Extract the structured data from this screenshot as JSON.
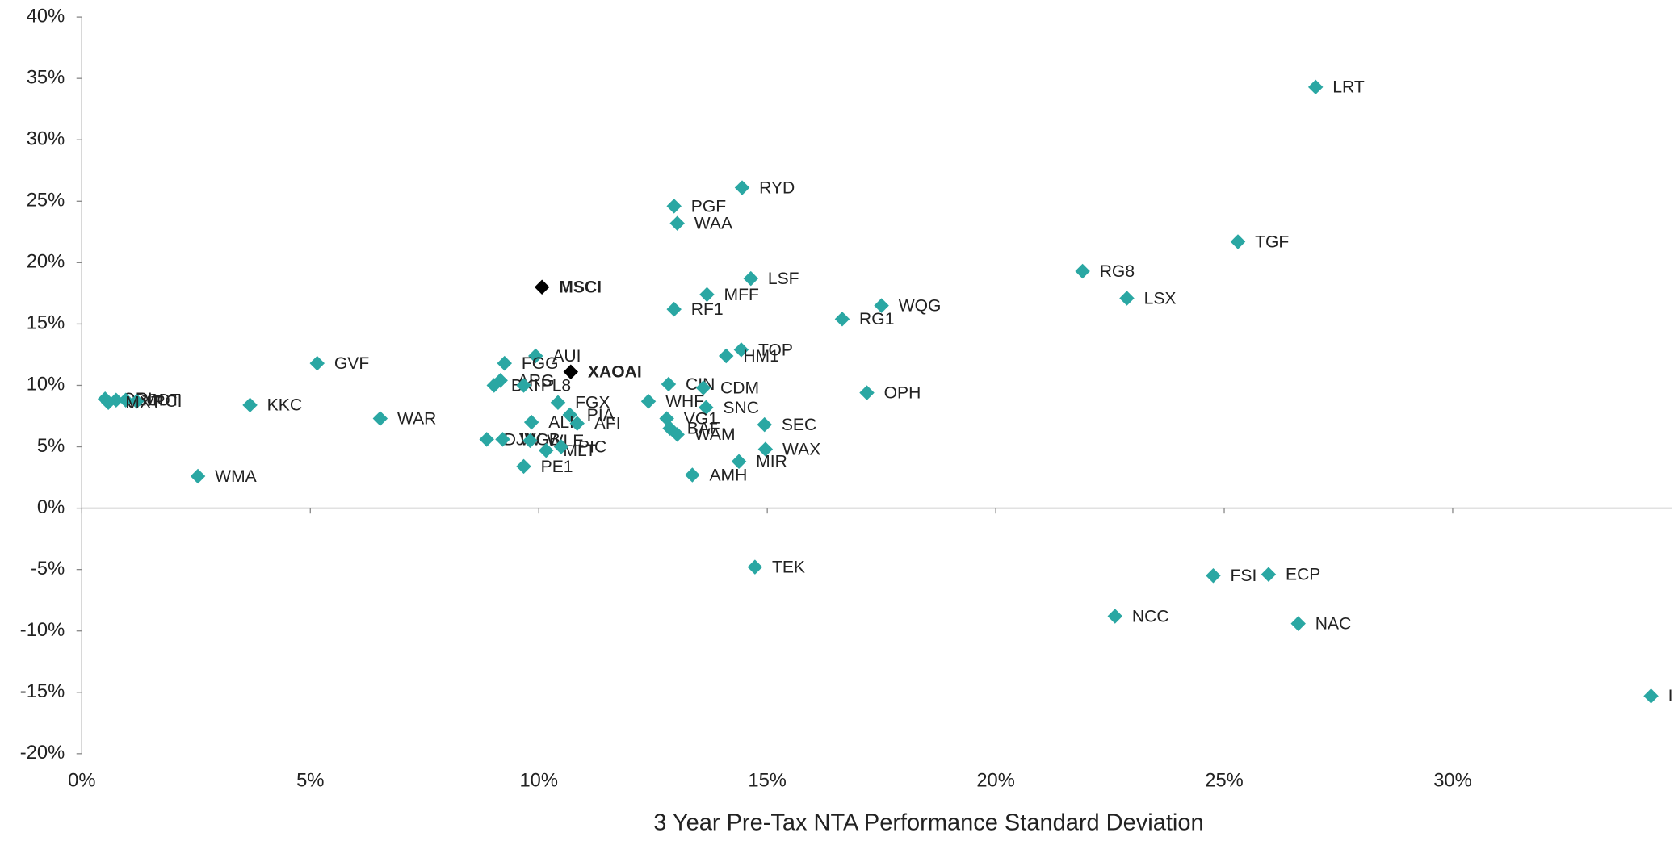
{
  "chart_data": {
    "type": "scatter",
    "xlabel": "3 Year Pre-Tax NTA Performance Standard Deviation",
    "xlim": [
      0,
      34.8
    ],
    "ylim": [
      -20,
      40
    ],
    "xticks": [
      {
        "value": 0,
        "label": "0%"
      },
      {
        "value": 5,
        "label": "5%"
      },
      {
        "value": 10,
        "label": "10%"
      },
      {
        "value": 15,
        "label": "15%"
      },
      {
        "value": 20,
        "label": "20%"
      },
      {
        "value": 25,
        "label": "25%"
      },
      {
        "value": 30,
        "label": "30%"
      }
    ],
    "yticks": [
      {
        "value": -20,
        "label": "-20%"
      },
      {
        "value": -15,
        "label": "-15%"
      },
      {
        "value": -10,
        "label": "-10%"
      },
      {
        "value": -5,
        "label": "-5%"
      },
      {
        "value": 0,
        "label": "0%"
      },
      {
        "value": 5,
        "label": "5%"
      },
      {
        "value": 10,
        "label": "10%"
      },
      {
        "value": 15,
        "label": "15%"
      },
      {
        "value": 20,
        "label": "20%"
      },
      {
        "value": 25,
        "label": "25%"
      },
      {
        "value": 30,
        "label": "30%"
      },
      {
        "value": 35,
        "label": "35%"
      },
      {
        "value": 40,
        "label": "40%"
      }
    ],
    "color": "#2aa7a3",
    "points": [
      {
        "label": "LRT",
        "x": 27.0,
        "y": 34.3,
        "color": "#2aa7a3"
      },
      {
        "label": "RYD",
        "x": 14.45,
        "y": 26.1,
        "color": "#2aa7a3"
      },
      {
        "label": "PGF",
        "x": 12.96,
        "y": 24.6,
        "color": "#2aa7a3"
      },
      {
        "label": "WAA",
        "x": 13.03,
        "y": 23.2,
        "color": "#2aa7a3"
      },
      {
        "label": "TGF",
        "x": 25.3,
        "y": 21.7,
        "color": "#2aa7a3"
      },
      {
        "label": "RG8",
        "x": 21.9,
        "y": 19.3,
        "color": "#2aa7a3"
      },
      {
        "label": "MSCI",
        "x": 10.07,
        "y": 18.0,
        "color": "#000000"
      },
      {
        "label": "LSF",
        "x": 14.64,
        "y": 18.7,
        "color": "#2aa7a3"
      },
      {
        "label": "LSX",
        "x": 22.87,
        "y": 17.1,
        "color": "#2aa7a3"
      },
      {
        "label": "MFF",
        "x": 13.68,
        "y": 17.4,
        "color": "#2aa7a3"
      },
      {
        "label": "WQG",
        "x": 17.5,
        "y": 16.5,
        "color": "#2aa7a3"
      },
      {
        "label": "RF1",
        "x": 12.96,
        "y": 16.2,
        "color": "#2aa7a3"
      },
      {
        "label": "RG1",
        "x": 16.64,
        "y": 15.4,
        "color": "#2aa7a3"
      },
      {
        "label": "GVF",
        "x": 5.15,
        "y": 11.8,
        "color": "#2aa7a3"
      },
      {
        "label": "AUI",
        "x": 9.93,
        "y": 12.4,
        "color": "#2aa7a3"
      },
      {
        "label": "FGG",
        "x": 9.25,
        "y": 11.8,
        "color": "#2aa7a3"
      },
      {
        "label": "XAOAI",
        "x": 10.7,
        "y": 11.1,
        "color": "#000000"
      },
      {
        "label": "TOP",
        "x": 14.43,
        "y": 12.9,
        "color": "#2aa7a3"
      },
      {
        "label": "HM1",
        "x": 14.1,
        "y": 12.4,
        "color": "#2aa7a3"
      },
      {
        "label": "BKI",
        "x": 9.02,
        "y": 10.0,
        "color": "#2aa7a3"
      },
      {
        "label": "ARG",
        "x": 9.16,
        "y": 10.4,
        "color": "#2aa7a3"
      },
      {
        "label": "PL8",
        "x": 9.67,
        "y": 10.0,
        "color": "#2aa7a3"
      },
      {
        "label": "CIN",
        "x": 12.84,
        "y": 10.1,
        "color": "#2aa7a3"
      },
      {
        "label": "CDM",
        "x": 13.6,
        "y": 9.8,
        "color": "#2aa7a3"
      },
      {
        "label": "OPH",
        "x": 17.18,
        "y": 9.4,
        "color": "#2aa7a3"
      },
      {
        "label": "QRI",
        "x": 0.51,
        "y": 8.9,
        "color": "#2aa7a3"
      },
      {
        "label": "GCI",
        "x": 0.75,
        "y": 8.8,
        "color": "#2aa7a3"
      },
      {
        "label": "MOT",
        "x": 0.96,
        "y": 8.8,
        "color": "#2aa7a3"
      },
      {
        "label": "PCI",
        "x": 1.2,
        "y": 8.7,
        "color": "#2aa7a3"
      },
      {
        "label": "MXT",
        "x": 0.58,
        "y": 8.6,
        "color": "#2aa7a3"
      },
      {
        "label": "KKC",
        "x": 3.68,
        "y": 8.4,
        "color": "#2aa7a3"
      },
      {
        "label": "FGX",
        "x": 10.42,
        "y": 8.6,
        "color": "#2aa7a3"
      },
      {
        "label": "WHF",
        "x": 12.4,
        "y": 8.7,
        "color": "#2aa7a3"
      },
      {
        "label": "SNC",
        "x": 13.66,
        "y": 8.2,
        "color": "#2aa7a3"
      },
      {
        "label": "PIA",
        "x": 10.68,
        "y": 7.6,
        "color": "#2aa7a3"
      },
      {
        "label": "WAR",
        "x": 6.53,
        "y": 7.3,
        "color": "#2aa7a3"
      },
      {
        "label": "ALI",
        "x": 9.84,
        "y": 7.0,
        "color": "#2aa7a3"
      },
      {
        "label": "AFI",
        "x": 10.84,
        "y": 6.9,
        "color": "#2aa7a3"
      },
      {
        "label": "VG1",
        "x": 12.8,
        "y": 7.3,
        "color": "#2aa7a3"
      },
      {
        "label": "SEC",
        "x": 14.94,
        "y": 6.8,
        "color": "#2aa7a3"
      },
      {
        "label": "BAF",
        "x": 12.87,
        "y": 6.5,
        "color": "#2aa7a3"
      },
      {
        "label": "WAM",
        "x": 13.03,
        "y": 6.0,
        "color": "#2aa7a3"
      },
      {
        "label": "DJW",
        "x": 8.86,
        "y": 5.6,
        "color": "#2aa7a3"
      },
      {
        "label": "WGB",
        "x": 9.21,
        "y": 5.6,
        "color": "#2aa7a3"
      },
      {
        "label": "WLE",
        "x": 9.81,
        "y": 5.5,
        "color": "#2aa7a3"
      },
      {
        "label": "MLT",
        "x": 10.16,
        "y": 4.7,
        "color": "#2aa7a3"
      },
      {
        "label": "PIC",
        "x": 10.49,
        "y": 5.0,
        "color": "#2aa7a3"
      },
      {
        "label": "WAX",
        "x": 14.96,
        "y": 4.8,
        "color": "#2aa7a3"
      },
      {
        "label": "MIR",
        "x": 14.38,
        "y": 3.8,
        "color": "#2aa7a3"
      },
      {
        "label": "PE1",
        "x": 9.67,
        "y": 3.4,
        "color": "#2aa7a3"
      },
      {
        "label": "AMH",
        "x": 13.36,
        "y": 2.7,
        "color": "#2aa7a3"
      },
      {
        "label": "WMA",
        "x": 2.54,
        "y": 2.6,
        "color": "#2aa7a3"
      },
      {
        "label": "TEK",
        "x": 14.73,
        "y": -4.8,
        "color": "#2aa7a3"
      },
      {
        "label": "FSI",
        "x": 24.76,
        "y": -5.5,
        "color": "#2aa7a3"
      },
      {
        "label": "ECP",
        "x": 25.97,
        "y": -5.4,
        "color": "#2aa7a3"
      },
      {
        "label": "NCC",
        "x": 22.61,
        "y": -8.8,
        "color": "#2aa7a3"
      },
      {
        "label": "NAC",
        "x": 26.62,
        "y": -9.4,
        "color": "#2aa7a3"
      },
      {
        "label": "I",
        "x": 34.34,
        "y": -15.3,
        "color": "#2aa7a3"
      }
    ]
  }
}
